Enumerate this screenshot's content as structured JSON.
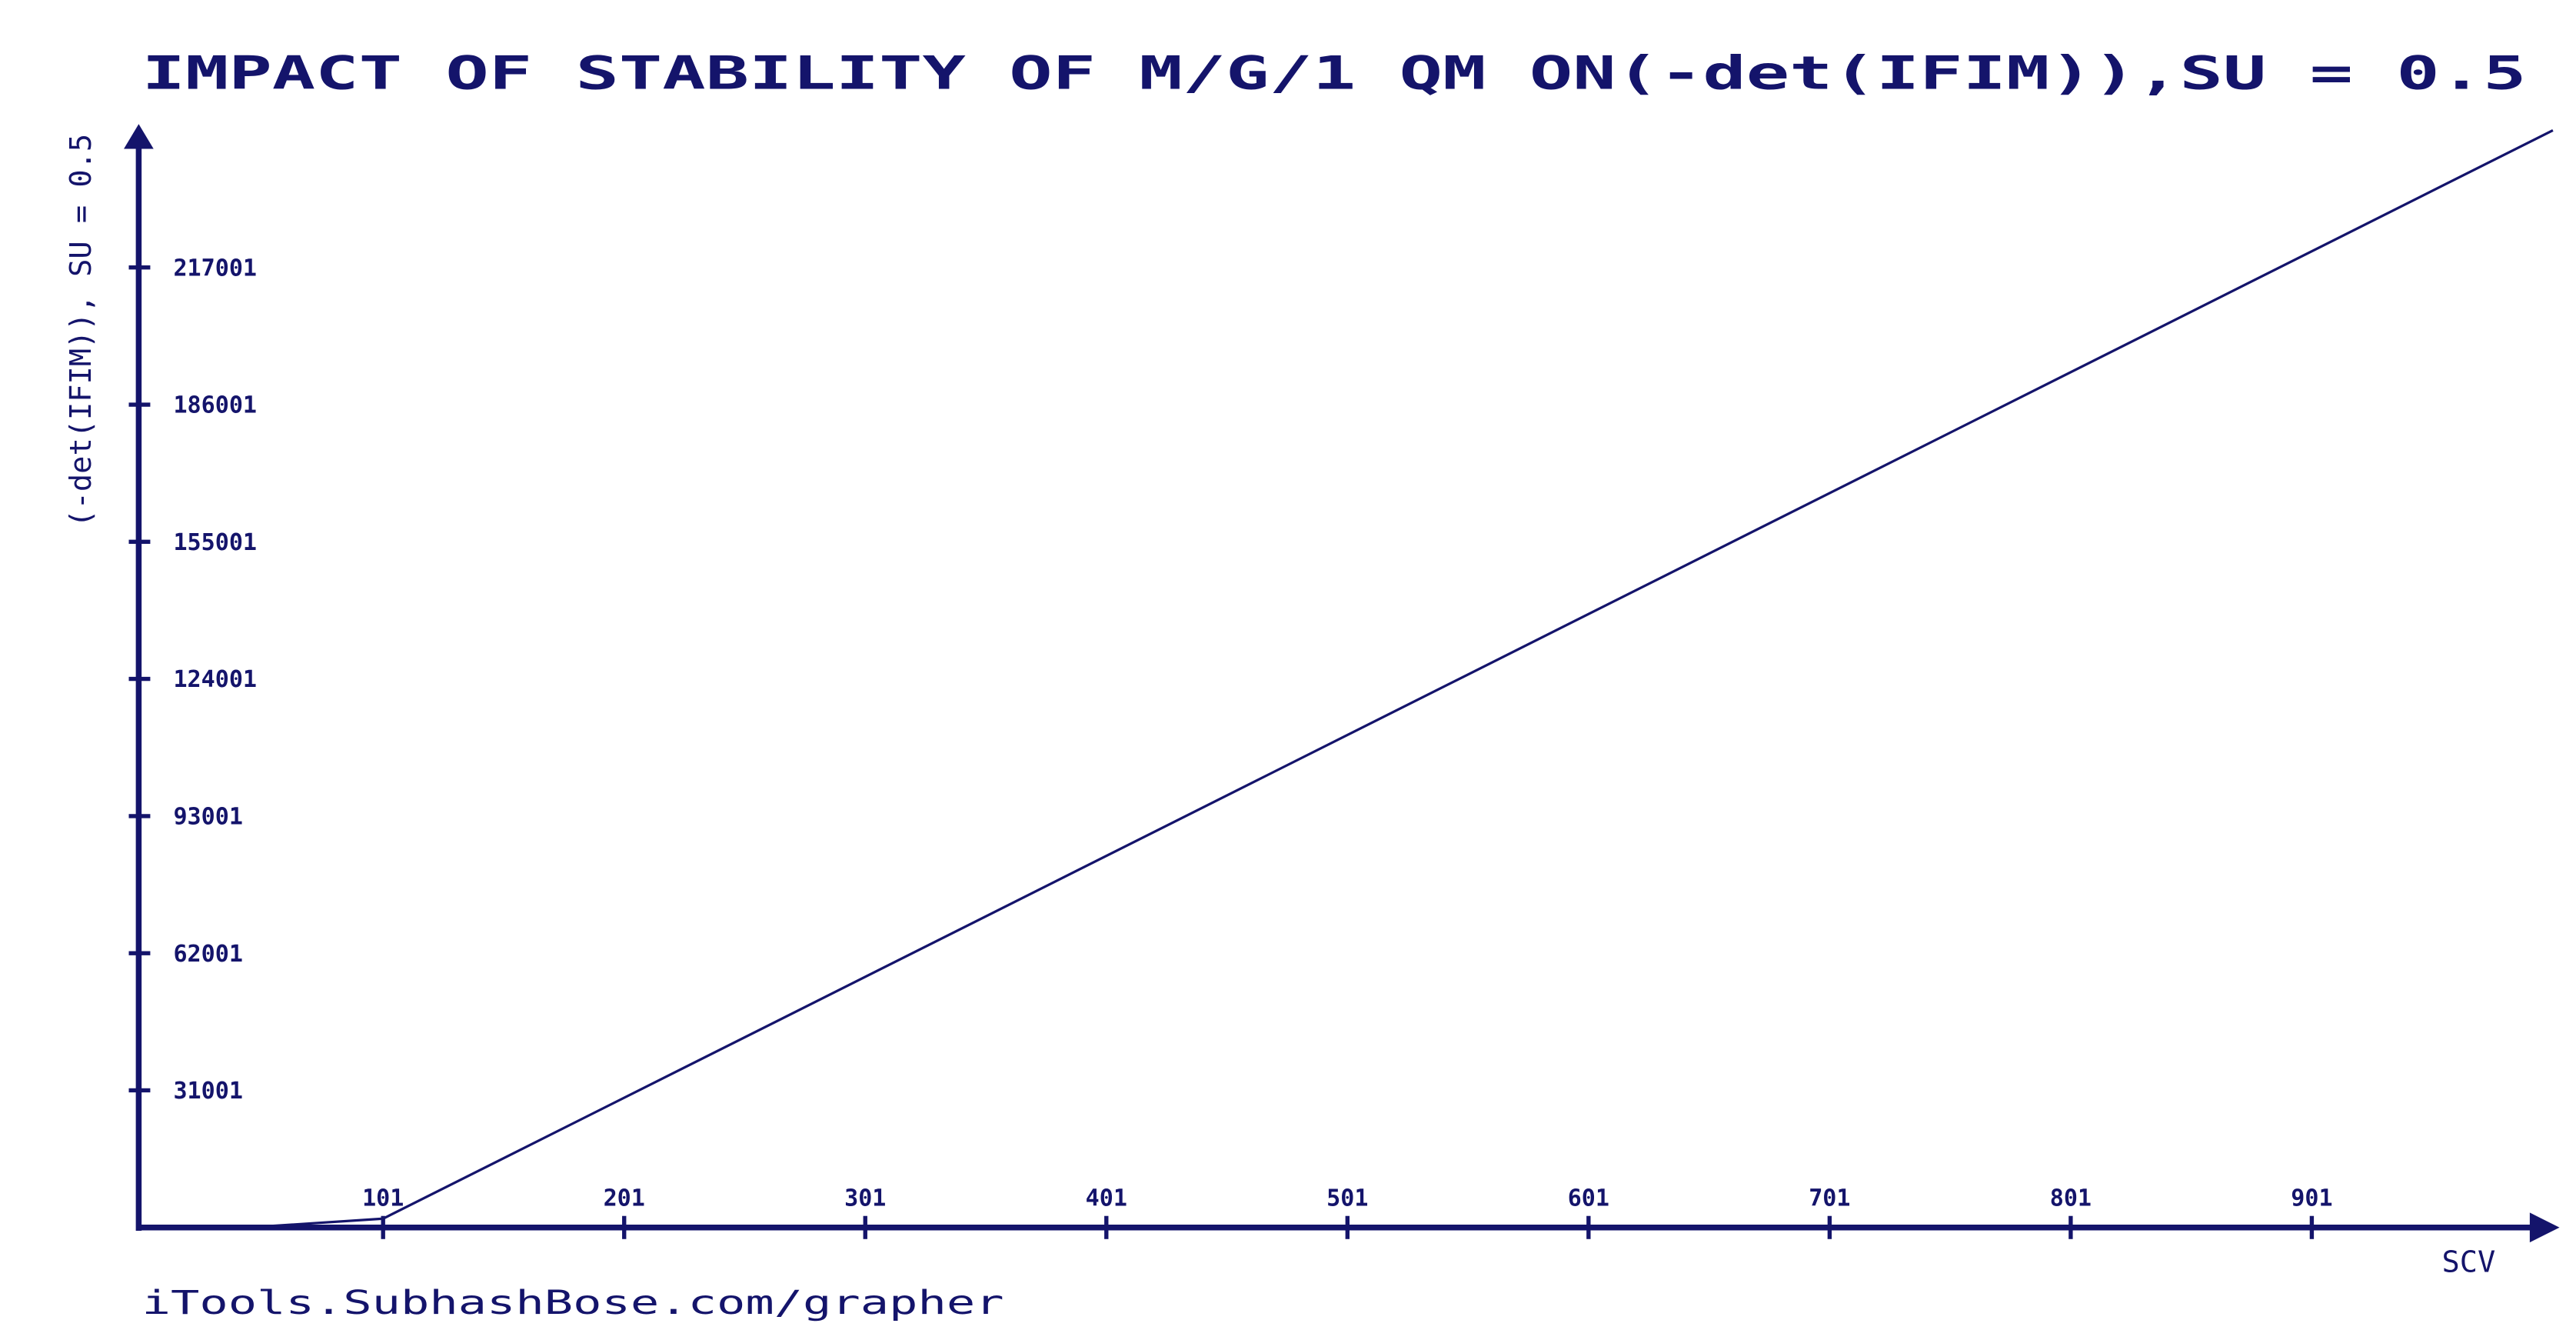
{
  "chart_data": {
    "type": "line",
    "title": "IMPACT OF STABILITY OF M/G/1 QM ON(-det(IFIM)),SU = 0.5",
    "x_label": "SCV",
    "y_label": "(-det(IFIM)), SU = 0.5",
    "source": "iTools.SubhashBose.com/grapher",
    "x": [
      45,
      101,
      1001
    ],
    "series": [
      {
        "name": "(-det(IFIM)), SU = 0.5",
        "color": "#14146b",
        "values": [
          0,
          2000,
          248000
        ]
      }
    ],
    "xlim": [
      1,
      1001
    ],
    "ylim": [
      1,
      248000
    ],
    "xticks": [
      101,
      201,
      301,
      401,
      501,
      601,
      701,
      801,
      901
    ],
    "yticks": [
      31001,
      62001,
      93001,
      124001,
      155001,
      186001,
      217001
    ],
    "grid": false,
    "legend": false
  }
}
